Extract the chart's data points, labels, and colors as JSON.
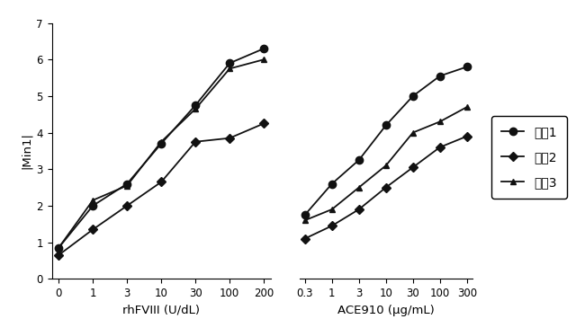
{
  "left_panel": {
    "xlabel": "rhFVIII (U/dL)",
    "xtick_labels": [
      "0",
      "1",
      "3",
      "10",
      "30",
      "100",
      "200"
    ],
    "series_1": {
      "y": [
        0.85,
        2.0,
        2.6,
        3.7,
        4.75,
        5.9,
        6.3
      ],
      "label": "試蕠1",
      "marker": "o"
    },
    "series_2": {
      "y": [
        0.65,
        1.35,
        2.0,
        2.65,
        3.75,
        3.85,
        4.25
      ],
      "label": "試蕠2",
      "marker": "D"
    },
    "series_3": {
      "y": [
        0.85,
        2.15,
        2.55,
        3.75,
        4.65,
        5.75,
        6.0
      ],
      "label": "試蕠3",
      "marker": "^"
    }
  },
  "right_panel": {
    "xlabel": "ACE910 (μg/mL)",
    "xtick_labels": [
      "0.3",
      "1",
      "3",
      "10",
      "30",
      "100",
      "300"
    ],
    "series_1": {
      "y": [
        1.75,
        2.6,
        3.25,
        4.2,
        5.0,
        5.55,
        5.8
      ],
      "label": "試蕠1",
      "marker": "o"
    },
    "series_2": {
      "y": [
        1.1,
        1.45,
        1.9,
        2.5,
        3.05,
        3.6,
        3.9
      ],
      "label": "試蕠2",
      "marker": "D"
    },
    "series_3": {
      "y": [
        1.6,
        1.9,
        2.5,
        3.1,
        4.0,
        4.3,
        4.7
      ],
      "label": "試蕠3",
      "marker": "^"
    }
  },
  "ylabel": "|Min1|",
  "ylim": [
    0,
    7
  ],
  "yticks": [
    0,
    1,
    2,
    3,
    4,
    5,
    6,
    7
  ],
  "legend_labels": [
    "試蕠1",
    "試蕠2",
    "試蕠3"
  ],
  "legend_markers": [
    "o",
    "D",
    "^"
  ],
  "line_color": "#111111",
  "bg_color": "#ffffff"
}
